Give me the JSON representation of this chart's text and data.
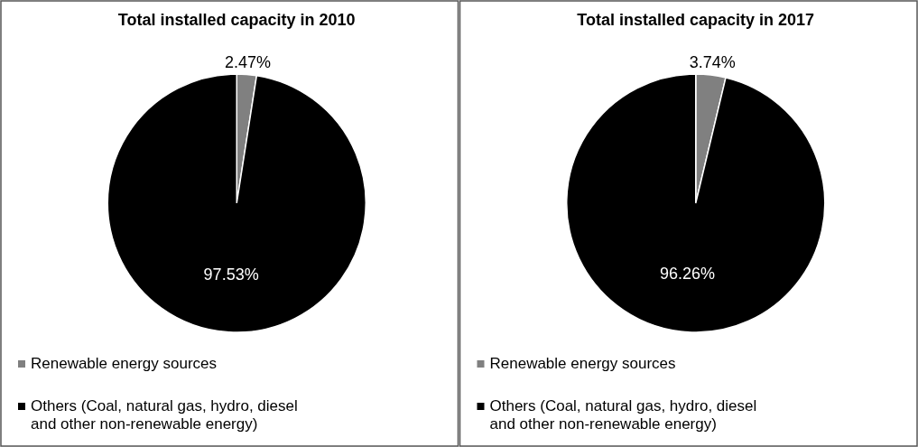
{
  "chart_data": [
    {
      "type": "pie",
      "title": "Total installed capacity in 2010",
      "categories": [
        "Renewable energy sources",
        "Others (Coal, natural gas, hydro, diesel and other non-renewable energy)"
      ],
      "values": [
        2.47,
        97.53
      ],
      "value_labels": [
        "2.47%",
        "97.53%"
      ],
      "colors": [
        "#808080",
        "#000000"
      ],
      "legend": "bottom"
    },
    {
      "type": "pie",
      "title": "Total installed capacity in 2017",
      "categories": [
        "Renewable energy sources",
        "Others (Coal, natural gas, hydro, diesel and other non-renewable energy)"
      ],
      "values": [
        3.74,
        96.26
      ],
      "value_labels": [
        "3.74%",
        "96.26%"
      ],
      "colors": [
        "#808080",
        "#000000"
      ],
      "legend": "bottom"
    }
  ]
}
